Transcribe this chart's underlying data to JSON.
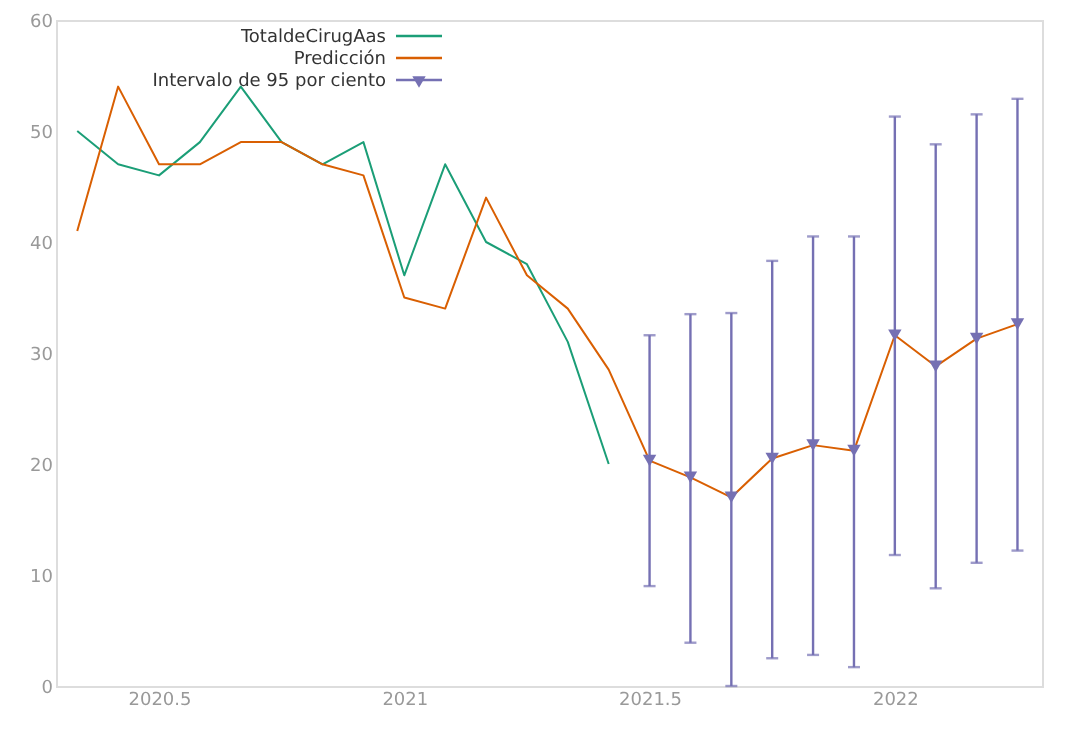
{
  "chart_data": {
    "type": "line",
    "xlim": [
      2020.29,
      2022.3
    ],
    "ylim": [
      0,
      60
    ],
    "xticks": [
      2020.5,
      2021,
      2021.5,
      2022
    ],
    "yticks": [
      0,
      10,
      20,
      30,
      40,
      50,
      60
    ],
    "grid": false,
    "legend": "top",
    "line_style": "solid",
    "series": [
      {
        "name": "TotaldeCirugAas",
        "type": "line",
        "color": "#1b9e77",
        "x": [
          2020.3333,
          2020.4167,
          2020.5,
          2020.5833,
          2020.6667,
          2020.75,
          2020.8333,
          2020.9167,
          2021,
          2021.0833,
          2021.1667,
          2021.25,
          2021.3333,
          2021.4167
        ],
        "values": [
          50,
          47,
          46,
          49,
          54,
          49,
          47,
          49,
          37,
          47,
          40,
          38,
          31,
          20
        ]
      },
      {
        "name": "Predicción",
        "type": "line",
        "color": "#d95f02",
        "x": [
          2020.3333,
          2020.4167,
          2020.5,
          2020.5833,
          2020.6667,
          2020.75,
          2020.8333,
          2020.9167,
          2021,
          2021.0833,
          2021.1667,
          2021.25,
          2021.3333,
          2021.4167,
          2021.5,
          2021.5833,
          2021.6667,
          2021.75,
          2021.8333,
          2021.9167,
          2022,
          2022.0833,
          2022.1667,
          2022.25
        ],
        "values": [
          41,
          54,
          47,
          47,
          49,
          49,
          47,
          46,
          35,
          34,
          44,
          37,
          34,
          28.5,
          20.3,
          18.8,
          17,
          20.5,
          21.7,
          21.2,
          31.6,
          28.8,
          31.3,
          32.6
        ]
      },
      {
        "name": "Intervalo de 95 por ciento",
        "type": "scatter",
        "marker": "triangle",
        "color": "#7570b3",
        "x": [
          2021.5,
          2021.5833,
          2021.6667,
          2021.75,
          2021.8333,
          2021.9167,
          2022,
          2022.0833,
          2022.1667,
          2022.25
        ],
        "values": [
          20.3,
          18.8,
          17,
          20.5,
          21.7,
          21.2,
          31.6,
          28.8,
          31.3,
          32.6
        ],
        "errors": [
          [
            9,
            31.6
          ],
          [
            3.9,
            33.5
          ],
          [
            0,
            33.6
          ],
          [
            2.5,
            38.3
          ],
          [
            2.8,
            40.5
          ],
          [
            1.7,
            40.5
          ],
          [
            11.8,
            51.3
          ],
          [
            8.8,
            48.8
          ],
          [
            11.1,
            51.5
          ],
          [
            12.2,
            52.9
          ]
        ]
      }
    ]
  }
}
